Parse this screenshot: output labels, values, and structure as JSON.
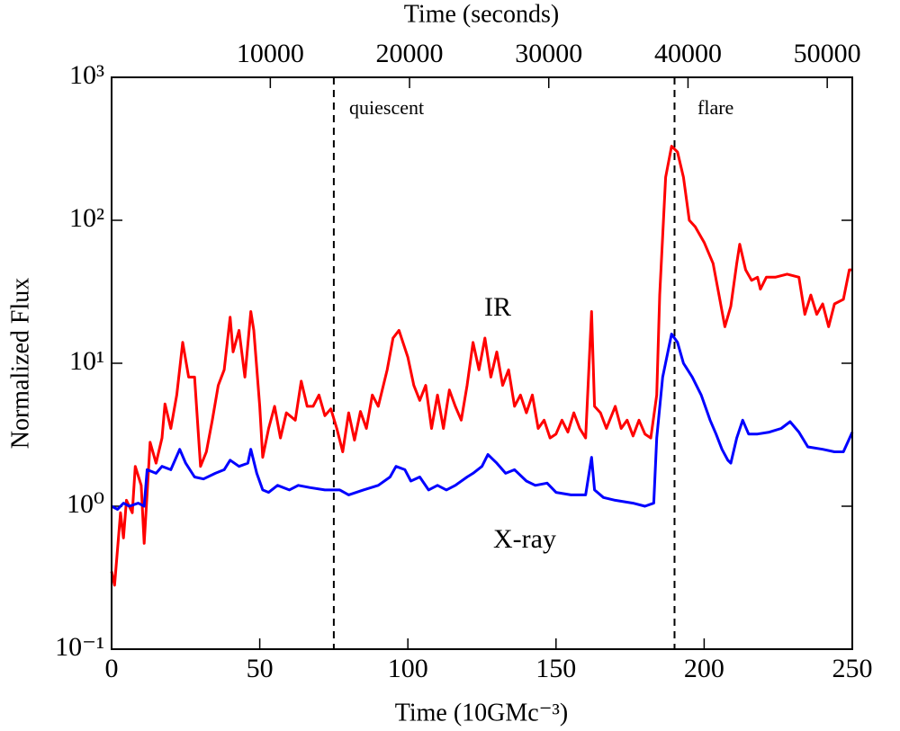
{
  "chart_data": {
    "type": "line",
    "xlabel": "Time (10GMc⁻³)",
    "ylabel": "Normalized Flux",
    "x2label": "Time (seconds)",
    "xlim": [
      0,
      250
    ],
    "xticks": [
      0,
      50,
      100,
      150,
      200,
      250
    ],
    "x2lim": [
      -1400,
      51800
    ],
    "x2ticks": [
      10000,
      20000,
      30000,
      40000,
      50000
    ],
    "ylim": [
      0.1,
      1000
    ],
    "yticks": [
      {
        "value": 0.1,
        "label": "10⁻¹"
      },
      {
        "value": 1,
        "label": "10⁰"
      },
      {
        "value": 10,
        "label": "10¹"
      },
      {
        "value": 100,
        "label": "10²"
      },
      {
        "value": 1000,
        "label": "10³"
      }
    ],
    "log_y": true,
    "vlines": [
      75,
      190
    ],
    "annotations": [
      "quiescent",
      "flare",
      "IR",
      "X-ray"
    ],
    "series": [
      {
        "name": "IR",
        "color": "#ff0000",
        "x": [
          0,
          1,
          3,
          4,
          5,
          7,
          8,
          10,
          11,
          13,
          15,
          17,
          18,
          20,
          22,
          24,
          26,
          28,
          30,
          32,
          34,
          36,
          38,
          40,
          41,
          43,
          45,
          47,
          48,
          50,
          51,
          53,
          55,
          57,
          59,
          62,
          64,
          66,
          68,
          70,
          72,
          74,
          76,
          78,
          80,
          82,
          84,
          86,
          88,
          90,
          93,
          95,
          97,
          100,
          102,
          104,
          106,
          108,
          110,
          112,
          114,
          116,
          118,
          120,
          122,
          124,
          126,
          128,
          130,
          132,
          134,
          136,
          138,
          140,
          142,
          144,
          146,
          148,
          150,
          152,
          154,
          156,
          158,
          160,
          162,
          163,
          165,
          167,
          170,
          172,
          174,
          176,
          178,
          180,
          182,
          184,
          185,
          187,
          189,
          191,
          193,
          195,
          197,
          200,
          203,
          205,
          207,
          209,
          211,
          212,
          214,
          216,
          218,
          219,
          221,
          224,
          228,
          232,
          234,
          236,
          238,
          240,
          242,
          244,
          247,
          249,
          250
        ],
        "values": [
          0.35,
          0.28,
          0.9,
          0.6,
          1.1,
          0.9,
          1.9,
          1.4,
          0.55,
          2.8,
          2.0,
          3.0,
          5.2,
          3.5,
          6,
          14,
          8,
          8,
          1.9,
          2.4,
          4,
          7,
          9,
          21,
          12,
          17,
          8,
          23,
          17,
          5,
          2.2,
          3.5,
          5,
          3,
          4.5,
          4,
          7.5,
          5,
          5,
          6,
          4.3,
          4.8,
          3.5,
          2.4,
          4.5,
          2.9,
          4.6,
          3.5,
          6,
          5,
          9,
          15,
          17,
          11,
          7,
          5.5,
          7,
          3.5,
          6,
          3.5,
          6.5,
          5,
          4,
          7,
          14,
          9,
          15,
          8,
          12,
          7,
          9,
          5,
          6,
          4.5,
          6,
          3.5,
          4,
          3,
          3.2,
          4,
          3.3,
          4.5,
          3.5,
          3.0,
          23,
          5,
          4.5,
          3.5,
          5,
          3.5,
          4,
          3.1,
          4,
          3.2,
          3,
          6,
          30,
          200,
          330,
          300,
          200,
          100,
          90,
          70,
          50,
          30,
          18,
          25,
          50,
          68,
          45,
          38,
          40,
          33,
          40,
          40,
          42,
          40,
          22,
          30,
          22,
          26,
          18,
          26,
          28,
          45,
          45
        ]
      },
      {
        "name": "X-ray",
        "color": "#0000ff",
        "x": [
          0,
          2,
          4,
          6,
          9,
          11,
          12,
          15,
          17,
          20,
          23,
          25,
          28,
          31,
          35,
          38,
          40,
          43,
          46,
          47,
          49,
          51,
          53,
          56,
          60,
          63,
          67,
          72,
          77,
          80,
          85,
          90,
          94,
          96,
          99,
          101,
          104,
          107,
          110,
          113,
          116,
          120,
          122,
          125,
          127,
          130,
          133,
          136,
          140,
          143,
          147,
          150,
          155,
          160,
          162,
          163,
          166,
          170,
          176,
          180,
          183,
          184,
          186,
          189,
          191,
          193,
          196,
          199,
          202,
          204,
          206,
          208,
          209,
          211,
          213,
          215,
          218,
          222,
          226,
          229,
          232,
          235,
          240,
          244,
          247,
          250
        ],
        "values": [
          1.0,
          0.95,
          1.05,
          1.0,
          1.05,
          1.0,
          1.8,
          1.7,
          1.9,
          1.8,
          2.5,
          2.0,
          1.6,
          1.55,
          1.7,
          1.8,
          2.1,
          1.9,
          2.0,
          2.5,
          1.7,
          1.3,
          1.25,
          1.4,
          1.3,
          1.4,
          1.35,
          1.3,
          1.3,
          1.2,
          1.3,
          1.4,
          1.6,
          1.9,
          1.8,
          1.5,
          1.6,
          1.3,
          1.4,
          1.3,
          1.4,
          1.6,
          1.7,
          1.9,
          2.3,
          2.0,
          1.7,
          1.8,
          1.5,
          1.4,
          1.45,
          1.25,
          1.2,
          1.2,
          2.2,
          1.3,
          1.15,
          1.1,
          1.05,
          1.0,
          1.05,
          3,
          8,
          16,
          14,
          10,
          8,
          6,
          4,
          3.2,
          2.5,
          2.1,
          2.0,
          3,
          4,
          3.2,
          3.2,
          3.3,
          3.5,
          3.9,
          3.3,
          2.6,
          2.5,
          2.4,
          2.4,
          3.3
        ]
      }
    ]
  }
}
